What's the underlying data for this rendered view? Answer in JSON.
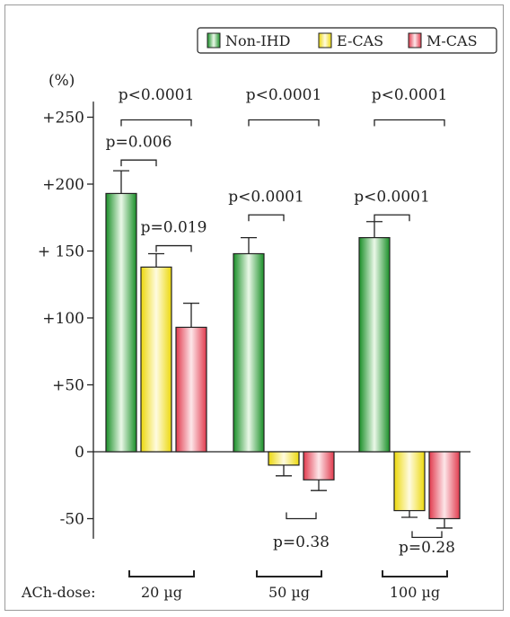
{
  "chart_data": {
    "type": "bar",
    "ylabel": "(%)",
    "ylim": [
      -65,
      265
    ],
    "yticks": [
      {
        "value": 250,
        "label": "+250"
      },
      {
        "value": 200,
        "label": "+200"
      },
      {
        "value": 150,
        "label": "+ 150"
      },
      {
        "value": 100,
        "label": "+100"
      },
      {
        "value": 50,
        "label": "+50"
      },
      {
        "value": 0,
        "label": "0"
      },
      {
        "value": -50,
        "label": "-50"
      }
    ],
    "xlabel": "ACh-dose:",
    "categories": [
      "20 µg",
      "50 µg",
      "100 µg"
    ],
    "series": [
      {
        "name": "Non-IHD",
        "color": "#1f9a2e",
        "values": [
          193,
          148,
          160
        ],
        "errors": [
          17,
          12,
          12
        ]
      },
      {
        "name": "E-CAS",
        "color": "#f2e21a",
        "values": [
          138,
          -10,
          -44
        ],
        "errors": [
          10,
          8,
          5
        ]
      },
      {
        "name": "M-CAS",
        "color": "#e8485a",
        "values": [
          93,
          -21,
          -50
        ],
        "errors": [
          18,
          8,
          7
        ]
      }
    ],
    "annotations": [
      {
        "text": "p<0.0001",
        "group": 0,
        "from_series": 0,
        "to_series": 2,
        "bracket_value": 248,
        "label_value": 263
      },
      {
        "text": "p=0.006",
        "group": 0,
        "from_series": 0,
        "to_series": 1,
        "bracket_value": 218,
        "label_value": 228
      },
      {
        "text": "p=0.019",
        "group": 0,
        "from_series": 1,
        "to_series": 2,
        "bracket_value": 154,
        "label_value": 164
      },
      {
        "text": "p<0.0001",
        "group": 1,
        "from_series": 0,
        "to_series": 2,
        "bracket_value": 248,
        "label_value": 263
      },
      {
        "text": "p<0.0001",
        "group": 1,
        "from_series": 0,
        "to_series": 1,
        "bracket_value": 177,
        "label_value": 187
      },
      {
        "text": "p=0.38",
        "group": 1,
        "from_series": 1,
        "to_series": 2,
        "bracket_value": -50,
        "label_value": -71,
        "below": true
      },
      {
        "text": "p<0.0001",
        "group": 2,
        "from_series": 0,
        "to_series": 2,
        "bracket_value": 248,
        "label_value": 263
      },
      {
        "text": "p<0.0001",
        "group": 2,
        "from_series": 0,
        "to_series": 1,
        "bracket_value": 177,
        "label_value": 187
      },
      {
        "text": "p=0.28",
        "group": 2,
        "from_series": 1,
        "to_series": 2,
        "bracket_value": -64,
        "label_value": -75,
        "below": true
      }
    ],
    "legend": "top-right",
    "grid": false
  }
}
